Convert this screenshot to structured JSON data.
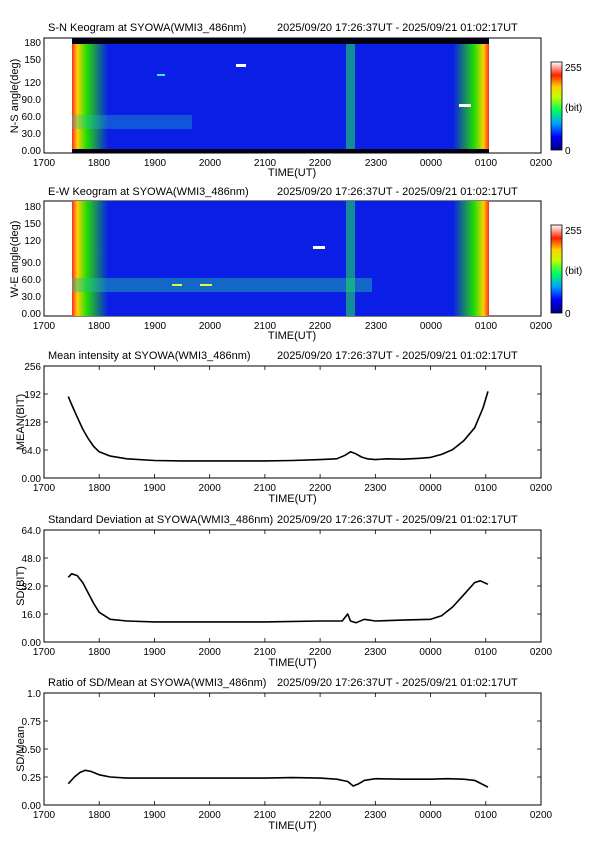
{
  "time_span": "2025/09/20 17:26:37UT - 2025/09/21 01:02:17UT",
  "x_tick_labels": [
    "1700",
    "1800",
    "1900",
    "2000",
    "2100",
    "2200",
    "2300",
    "0000",
    "0100",
    "0200"
  ],
  "colorbar": {
    "max_label": "255",
    "unit_label": "(bit)",
    "min_label": "0"
  },
  "keograms": [
    {
      "title": "S-N Keogram at SYOWA(WMI3_486nm)",
      "ylabel": "N-S angle(deg)",
      "xlabel": "TIME(UT)",
      "y_tick_labels": [
        "0.00",
        "30.0",
        "60.0",
        "90.0",
        "120",
        "150",
        "180"
      ]
    },
    {
      "title": "E-W Keogram at SYOWA(WMI3_486nm)",
      "ylabel": "W-E angle(deg)",
      "xlabel": "TIME(UT)",
      "y_tick_labels": [
        "0.00",
        "30.0",
        "60.0",
        "90.0",
        "120",
        "150",
        "180"
      ]
    }
  ],
  "chart_data": [
    {
      "type": "heatmap",
      "title": "S-N Keogram at SYOWA(WMI3_486nm)",
      "xlabel": "TIME(UT)",
      "ylabel": "N-S angle(deg)",
      "xlim": [
        17.0,
        26.0
      ],
      "ylim": [
        0,
        180
      ],
      "data_x_range": [
        17.444,
        25.038
      ],
      "colorscale_range": [
        0,
        255
      ],
      "colorscale_unit": "(bit)",
      "colors": {
        "low": "#0000c8",
        "mid": "#00c800",
        "high": "#ff1e1e",
        "top": "#ffffff"
      }
    },
    {
      "type": "heatmap",
      "title": "E-W Keogram at SYOWA(WMI3_486nm)",
      "xlabel": "TIME(UT)",
      "ylabel": "W-E angle(deg)",
      "xlim": [
        17.0,
        26.0
      ],
      "ylim": [
        0,
        180
      ],
      "data_x_range": [
        17.444,
        25.038
      ],
      "colorscale_range": [
        0,
        255
      ],
      "colorscale_unit": "(bit)",
      "colors": {
        "low": "#0000c8",
        "mid": "#00c800",
        "high": "#ff1e1e",
        "top": "#ffffff"
      }
    },
    {
      "type": "line",
      "title": "Mean intensity at SYOWA(WMI3_486nm)",
      "xlabel": "TIME(UT)",
      "ylabel": "MEAN(BIT)",
      "xlim": [
        17.0,
        26.0
      ],
      "ylim": [
        0,
        256
      ],
      "y_tick_labels": [
        "0.00",
        "64.0",
        "128",
        "192",
        "256"
      ],
      "x": [
        17.44,
        17.5,
        17.6,
        17.7,
        17.8,
        17.9,
        18.0,
        18.2,
        18.5,
        19.0,
        19.5,
        20.0,
        20.5,
        21.0,
        21.5,
        22.0,
        22.3,
        22.45,
        22.55,
        22.65,
        22.75,
        22.85,
        23.0,
        23.2,
        23.5,
        23.8,
        24.0,
        24.2,
        24.4,
        24.6,
        24.8,
        24.95,
        25.04
      ],
      "y": [
        186,
        168,
        140,
        112,
        90,
        72,
        60,
        50,
        44,
        40,
        39,
        39,
        39,
        39,
        40,
        42,
        44,
        52,
        60,
        55,
        48,
        44,
        42,
        44,
        43,
        45,
        47,
        54,
        65,
        85,
        115,
        160,
        198
      ]
    },
    {
      "type": "line",
      "title": "Standard Deviation at SYOWA(WMI3_486nm)",
      "xlabel": "TIME(UT)",
      "ylabel": "SD(BIT)",
      "xlim": [
        17.0,
        26.0
      ],
      "ylim": [
        0,
        64
      ],
      "y_tick_labels": [
        "0.00",
        "16.0",
        "32.0",
        "48.0",
        "64.0"
      ],
      "x": [
        17.44,
        17.5,
        17.6,
        17.7,
        17.8,
        17.9,
        18.0,
        18.2,
        18.5,
        19.0,
        20.0,
        21.0,
        22.0,
        22.4,
        22.5,
        22.55,
        22.65,
        22.8,
        23.0,
        23.5,
        24.0,
        24.2,
        24.4,
        24.6,
        24.8,
        24.9,
        25.04
      ],
      "y": [
        37,
        39,
        38,
        34,
        28,
        22,
        17,
        13,
        12,
        11.5,
        11.5,
        11.5,
        12,
        12,
        16,
        12,
        11,
        13,
        12,
        12.5,
        13,
        15,
        20,
        27,
        34,
        35,
        33
      ]
    },
    {
      "type": "line",
      "title": "Ratio of SD/Mean at SYOWA(WMI3_486nm)",
      "xlabel": "TIME(UT)",
      "ylabel": "SD/Mean",
      "xlim": [
        17.0,
        26.0
      ],
      "ylim": [
        0,
        1.0
      ],
      "y_tick_labels": [
        "0.00",
        "0.25",
        "0.50",
        "0.75",
        "1.0"
      ],
      "x": [
        17.44,
        17.55,
        17.65,
        17.75,
        17.85,
        18.0,
        18.2,
        18.5,
        19.0,
        20.0,
        21.0,
        21.5,
        22.0,
        22.3,
        22.5,
        22.6,
        22.7,
        22.8,
        23.0,
        23.5,
        24.0,
        24.3,
        24.6,
        24.8,
        25.04
      ],
      "y": [
        0.19,
        0.25,
        0.29,
        0.31,
        0.3,
        0.27,
        0.25,
        0.24,
        0.24,
        0.24,
        0.24,
        0.245,
        0.24,
        0.23,
        0.21,
        0.17,
        0.19,
        0.22,
        0.235,
        0.23,
        0.23,
        0.235,
        0.23,
        0.22,
        0.16
      ]
    }
  ]
}
